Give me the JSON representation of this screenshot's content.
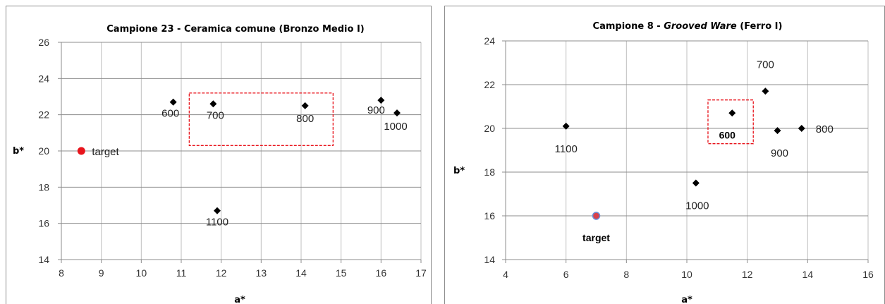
{
  "chart_data": [
    {
      "type": "scatter",
      "title_parts": [
        {
          "text": "Campione 23 - Ceramica comune (Bronzo Medio I)",
          "italic": false
        }
      ],
      "xlabel": "a*",
      "ylabel": "b*",
      "xlim": [
        8,
        17
      ],
      "ylim": [
        14,
        26
      ],
      "x_ticks": [
        8,
        9,
        10,
        11,
        12,
        13,
        14,
        15,
        16,
        17
      ],
      "y_ticks": [
        14,
        16,
        18,
        20,
        22,
        24,
        26
      ],
      "grid": true,
      "points": [
        {
          "label": "600",
          "x": 10.8,
          "y": 22.7
        },
        {
          "label": "700",
          "x": 11.8,
          "y": 22.6
        },
        {
          "label": "800",
          "x": 14.1,
          "y": 22.5
        },
        {
          "label": "900",
          "x": 16.0,
          "y": 22.8
        },
        {
          "label": "1000",
          "x": 16.4,
          "y": 22.1
        },
        {
          "label": "1100",
          "x": 11.9,
          "y": 16.7
        }
      ],
      "target": {
        "label": "target",
        "x": 8.5,
        "y": 20.0,
        "color": "#e8141c",
        "label_bold": false
      },
      "highlight_box": {
        "x0": 11.2,
        "x1": 14.8,
        "y0": 20.3,
        "y1": 23.2,
        "color": "#e8141c"
      },
      "marker_color": "#000000"
    },
    {
      "type": "scatter",
      "title_parts": [
        {
          "text": "Campione 8 - ",
          "italic": false
        },
        {
          "text": "Grooved Ware",
          "italic": true
        },
        {
          "text": " (Ferro I)",
          "italic": false
        }
      ],
      "xlabel": "a*",
      "ylabel": "b*",
      "xlim": [
        4,
        16
      ],
      "ylim": [
        14,
        24
      ],
      "x_ticks": [
        4,
        6,
        8,
        10,
        12,
        14,
        16
      ],
      "y_ticks": [
        14,
        16,
        18,
        20,
        22,
        24
      ],
      "grid": true,
      "points": [
        {
          "label": "1100",
          "x": 6.0,
          "y": 20.1
        },
        {
          "label": "1000",
          "x": 10.3,
          "y": 17.5
        },
        {
          "label": "600",
          "x": 11.5,
          "y": 20.7
        },
        {
          "label": "700",
          "x": 12.6,
          "y": 21.7
        },
        {
          "label": "900",
          "x": 13.0,
          "y": 19.9
        },
        {
          "label": "800",
          "x": 13.8,
          "y": 20.0
        }
      ],
      "target": {
        "label": "target",
        "x": 7.0,
        "y": 16.0,
        "color": "#d9414a",
        "ring": "#6b8fd6",
        "label_bold": true
      },
      "highlight_box": {
        "x0": 10.7,
        "x1": 12.2,
        "y0": 19.3,
        "y1": 21.3,
        "color": "#e8141c"
      },
      "marker_color": "#000000"
    }
  ]
}
